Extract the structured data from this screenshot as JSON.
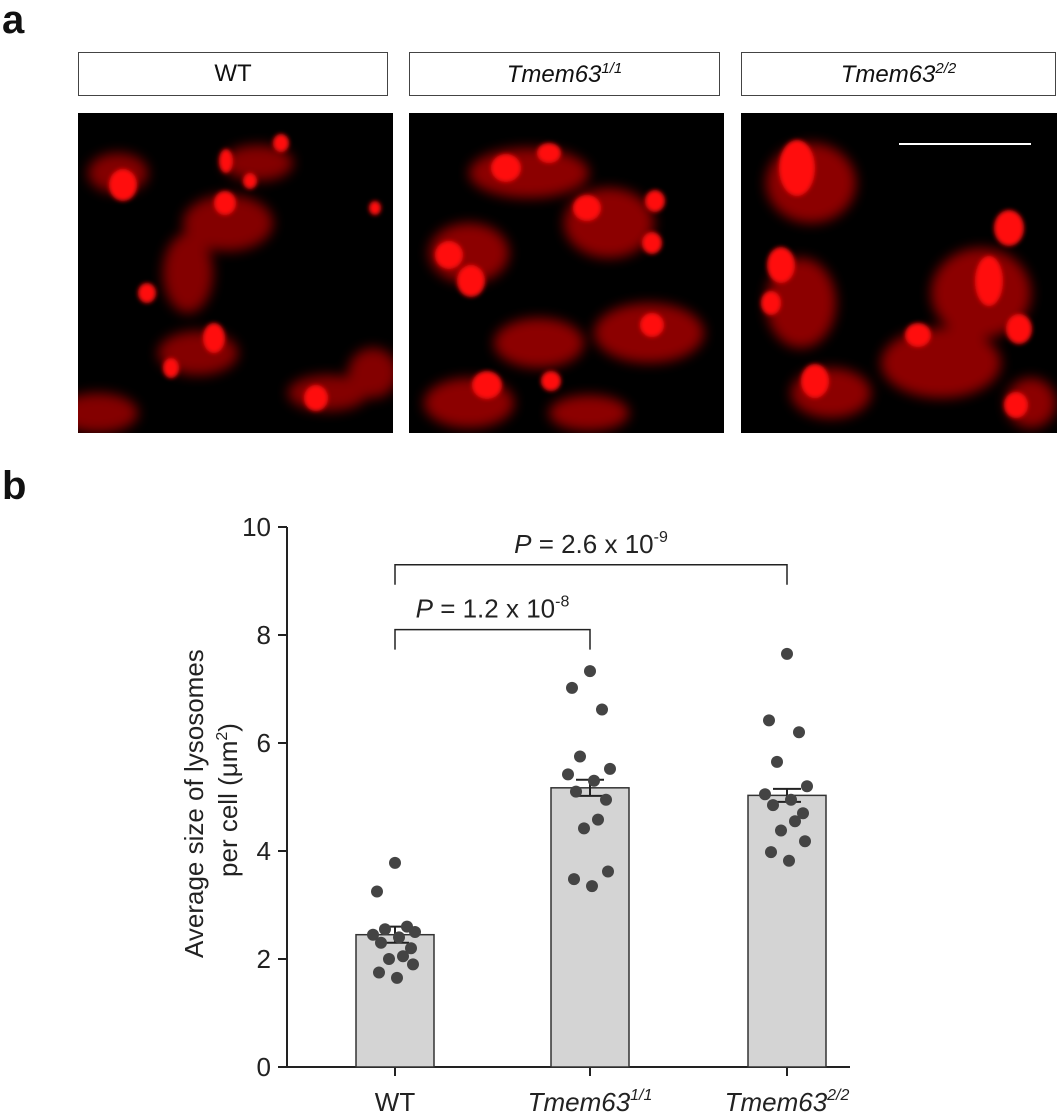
{
  "panels": {
    "a": "a",
    "b": "b"
  },
  "micrograph_labels": [
    {
      "name": "WT",
      "sup": ""
    },
    {
      "name": "Tmem63",
      "sup": "1/1"
    },
    {
      "name": "Tmem63",
      "sup": "2/2"
    }
  ],
  "colors": {
    "signal": "#ff1010",
    "bar_fill": "#d4d4d4",
    "points": "#444444"
  },
  "chart_data": {
    "type": "bar",
    "ylabel_line1": "Average size of lysosomes",
    "ylabel_line2": "per cell (μm",
    "ylabel_sup": "2",
    "ylabel_end": ")",
    "ylim": [
      0,
      10
    ],
    "yticks": [
      "0",
      "2",
      "4",
      "6",
      "8",
      "10"
    ],
    "categories": [
      {
        "name": "WT",
        "sup": ""
      },
      {
        "name": "Tmem63",
        "sup": "1/1"
      },
      {
        "name": "Tmem63",
        "sup": "2/2"
      }
    ],
    "values": [
      2.45,
      5.17,
      5.03
    ],
    "sem": [
      0.15,
      0.15,
      0.12
    ],
    "points": [
      [
        3.78,
        3.25,
        2.6,
        2.55,
        2.5,
        2.45,
        2.4,
        2.3,
        2.2,
        2.05,
        2.0,
        1.9,
        1.75,
        1.65
      ],
      [
        7.33,
        7.02,
        6.62,
        5.75,
        5.52,
        5.42,
        5.3,
        5.1,
        4.95,
        4.58,
        4.42,
        3.62,
        3.48,
        3.35
      ],
      [
        7.65,
        6.42,
        6.2,
        5.65,
        5.2,
        5.05,
        4.95,
        4.85,
        4.7,
        4.55,
        4.38,
        4.18,
        3.98,
        3.82
      ]
    ],
    "annotations": [
      {
        "from": 0,
        "to": 1,
        "y": 8.1,
        "p": "P",
        "text": " = 1.2 x 10",
        "exp": "-8"
      },
      {
        "from": 0,
        "to": 2,
        "y": 9.3,
        "p": "P",
        "text": " = 2.6 x 10",
        "exp": "-9"
      }
    ]
  }
}
